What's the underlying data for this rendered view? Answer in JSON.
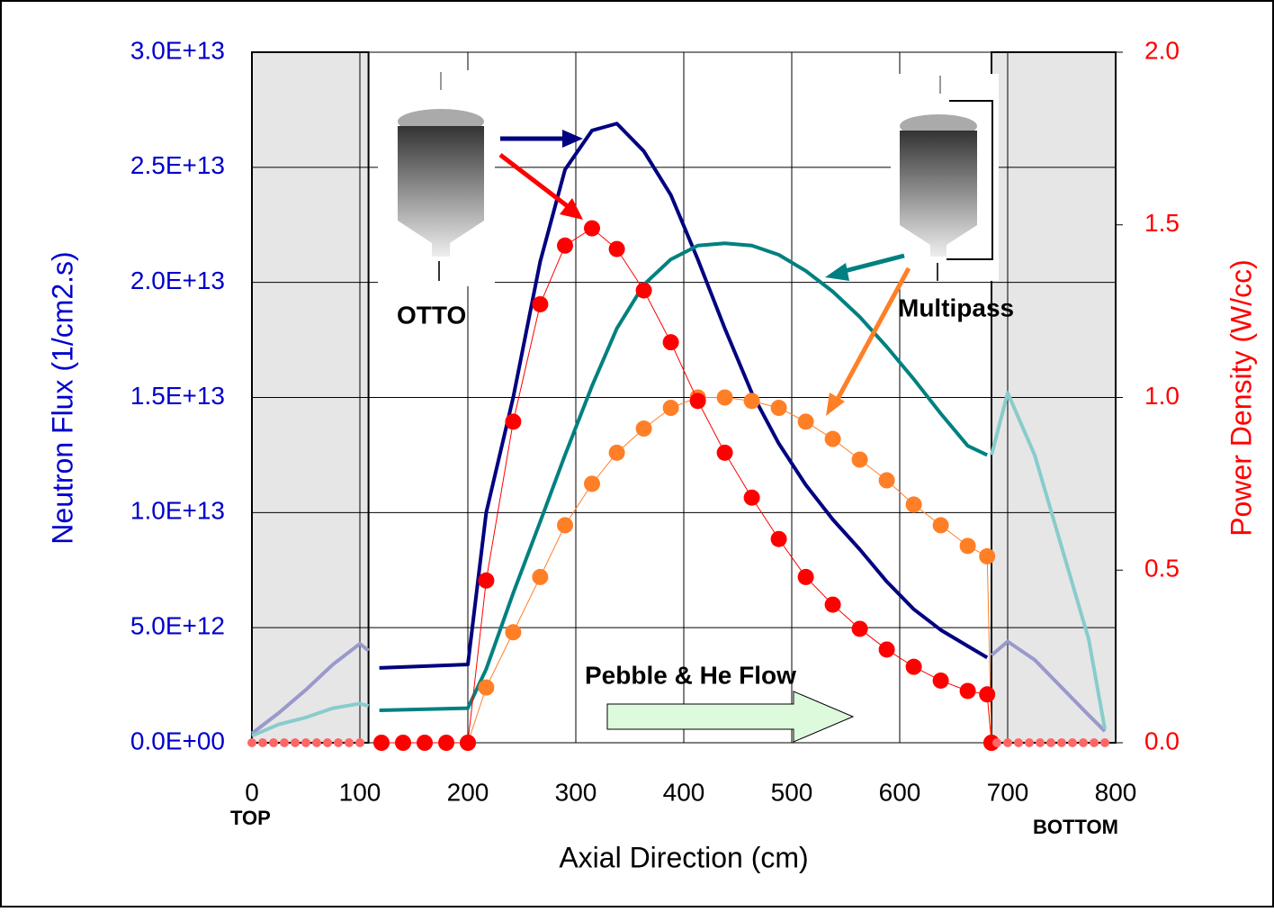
{
  "chart_data": {
    "type": "line",
    "xlabel": "Axial Direction (cm)",
    "ylabel": "Neutron Flux (1/cm2.s)",
    "y2label": "Power Density (W/cc)",
    "xlim": [
      0,
      800
    ],
    "xticks": [
      0,
      100,
      200,
      300,
      400,
      500,
      600,
      700,
      800
    ],
    "ylim": [
      0,
      30000000000000.0
    ],
    "yticks": [
      {
        "value": 0,
        "label": "0.0E+00"
      },
      {
        "value": 5000000000000.0,
        "label": "5.0E+12"
      },
      {
        "value": 10000000000000.0,
        "label": "1.0E+13"
      },
      {
        "value": 15000000000000.0,
        "label": "1.5E+13"
      },
      {
        "value": 20000000000000.0,
        "label": "2.0E+13"
      },
      {
        "value": 25000000000000.0,
        "label": "2.5E+13"
      },
      {
        "value": 30000000000000.0,
        "label": "3.0E+13"
      }
    ],
    "y2lim": [
      0,
      2
    ],
    "y2ticks": [
      {
        "value": 0,
        "label": "0.0"
      },
      {
        "value": 0.5,
        "label": "0.5"
      },
      {
        "value": 1,
        "label": "1.0"
      },
      {
        "value": 1.5,
        "label": "1.5"
      },
      {
        "value": 2,
        "label": "2.0"
      }
    ],
    "grid": true,
    "shaded_ranges": [
      [
        0,
        108
      ],
      [
        685,
        800
      ]
    ],
    "annotations": {
      "otto": "OTTO",
      "multipass": "Multipass",
      "flow": "Pebble & He Flow",
      "top": "TOP",
      "bottom": "BOTTOM"
    },
    "series": [
      {
        "color": "#000080",
        "width": 4,
        "marker": false,
        "x": [
          118,
          200,
          217,
          242,
          267,
          290,
          315,
          338,
          363,
          388,
          413,
          438,
          463,
          488,
          513,
          538,
          563,
          588,
          613,
          638,
          663,
          681
        ],
        "values": [
          3250000000000.0,
          3400000000000.0,
          10000000000000.0,
          15000000000000.0,
          20900000000000.0,
          24900000000000.0,
          26600000000000.0,
          26900000000000.0,
          25700000000000.0,
          23800000000000.0,
          21000000000000.0,
          18000000000000.0,
          15200000000000.0,
          13000000000000.0,
          11200000000000.0,
          9700000000000.0,
          8400000000000.0,
          7000000000000.0,
          5800000000000.0,
          4900000000000.0,
          4200000000000.0,
          3700000000000.0
        ]
      },
      {
        "color": "#008080",
        "width": 4,
        "marker": false,
        "x": [
          118,
          200,
          217,
          242,
          267,
          290,
          315,
          338,
          363,
          388,
          413,
          438,
          463,
          488,
          513,
          538,
          563,
          588,
          613,
          638,
          663,
          681
        ],
        "values": [
          1410000000000.0,
          1500000000000.0,
          3200000000000.0,
          6500000000000.0,
          9600000000000.0,
          12500000000000.0,
          15500000000000.0,
          18000000000000.0,
          19900000000000.0,
          21000000000000.0,
          21600000000000.0,
          21700000000000.0,
          21600000000000.0,
          21200000000000.0,
          20500000000000.0,
          19600000000000.0,
          18500000000000.0,
          17200000000000.0,
          15800000000000.0,
          14300000000000.0,
          12900000000000.0,
          12500000000000.0
        ]
      },
      {
        "color": "#9999cc",
        "width": 4,
        "marker": false,
        "x": [
          0,
          25,
          50,
          75,
          100,
          108
        ],
        "values": [
          400000000000.0,
          1300000000000.0,
          2300000000000.0,
          3400000000000.0,
          4300000000000.0,
          4000000000000.0
        ]
      },
      {
        "color": "#9999cc",
        "width": 4,
        "marker": false,
        "x": [
          685,
          700,
          725,
          750,
          775,
          790
        ],
        "values": [
          3800000000000.0,
          4400000000000.0,
          3600000000000.0,
          2400000000000.0,
          1200000000000.0,
          500000000000.0
        ]
      },
      {
        "color": "#88cccc",
        "width": 4,
        "marker": false,
        "x": [
          0,
          25,
          50,
          75,
          100,
          108
        ],
        "values": [
          300000000000.0,
          800000000000.0,
          1100000000000.0,
          1500000000000.0,
          1700000000000.0,
          1600000000000.0
        ]
      },
      {
        "color": "#88cccc",
        "width": 4,
        "marker": false,
        "x": [
          685,
          700,
          725,
          750,
          775,
          790
        ],
        "values": [
          12500000000000.0,
          15200000000000.0,
          12500000000000.0,
          8500000000000.0,
          4500000000000.0,
          600000000000.0
        ]
      },
      {
        "color": "#ff7f27",
        "width": 1,
        "marker": true,
        "radius": 9,
        "axis": "y2",
        "x": [
          200,
          217,
          242,
          267,
          290,
          315,
          338,
          363,
          388,
          413,
          438,
          463,
          488,
          513,
          538,
          563,
          588,
          613,
          638,
          663,
          681,
          685
        ],
        "values": [
          0,
          0.16,
          0.32,
          0.48,
          0.63,
          0.75,
          0.84,
          0.91,
          0.97,
          1.0,
          1.0,
          0.99,
          0.97,
          0.93,
          0.88,
          0.82,
          0.76,
          0.69,
          0.63,
          0.57,
          0.54,
          0
        ]
      },
      {
        "color": "#ff0000",
        "width": 1,
        "marker": true,
        "radius": 9,
        "axis": "y2",
        "x": [
          120,
          140,
          160,
          180,
          200,
          217,
          242,
          267,
          290,
          315,
          338,
          363,
          388,
          413,
          438,
          463,
          488,
          513,
          538,
          563,
          588,
          613,
          638,
          663,
          681,
          685
        ],
        "values": [
          0,
          0,
          0,
          0,
          0,
          0.47,
          0.93,
          1.27,
          1.44,
          1.49,
          1.43,
          1.31,
          1.16,
          0.99,
          0.84,
          0.71,
          0.59,
          0.48,
          0.4,
          0.33,
          0.27,
          0.22,
          0.18,
          0.15,
          0.14,
          0
        ]
      },
      {
        "color": "#ff6666",
        "width": 0,
        "marker": true,
        "radius": 5,
        "axis": "y2",
        "x": [
          0,
          10,
          20,
          30,
          40,
          50,
          60,
          70,
          80,
          90,
          100,
          690,
          700,
          710,
          720,
          730,
          740,
          750,
          760,
          770,
          780,
          790
        ],
        "values": [
          0,
          0,
          0,
          0,
          0,
          0,
          0,
          0,
          0,
          0,
          0,
          0,
          0,
          0,
          0,
          0,
          0,
          0,
          0,
          0,
          0,
          0
        ]
      }
    ]
  }
}
